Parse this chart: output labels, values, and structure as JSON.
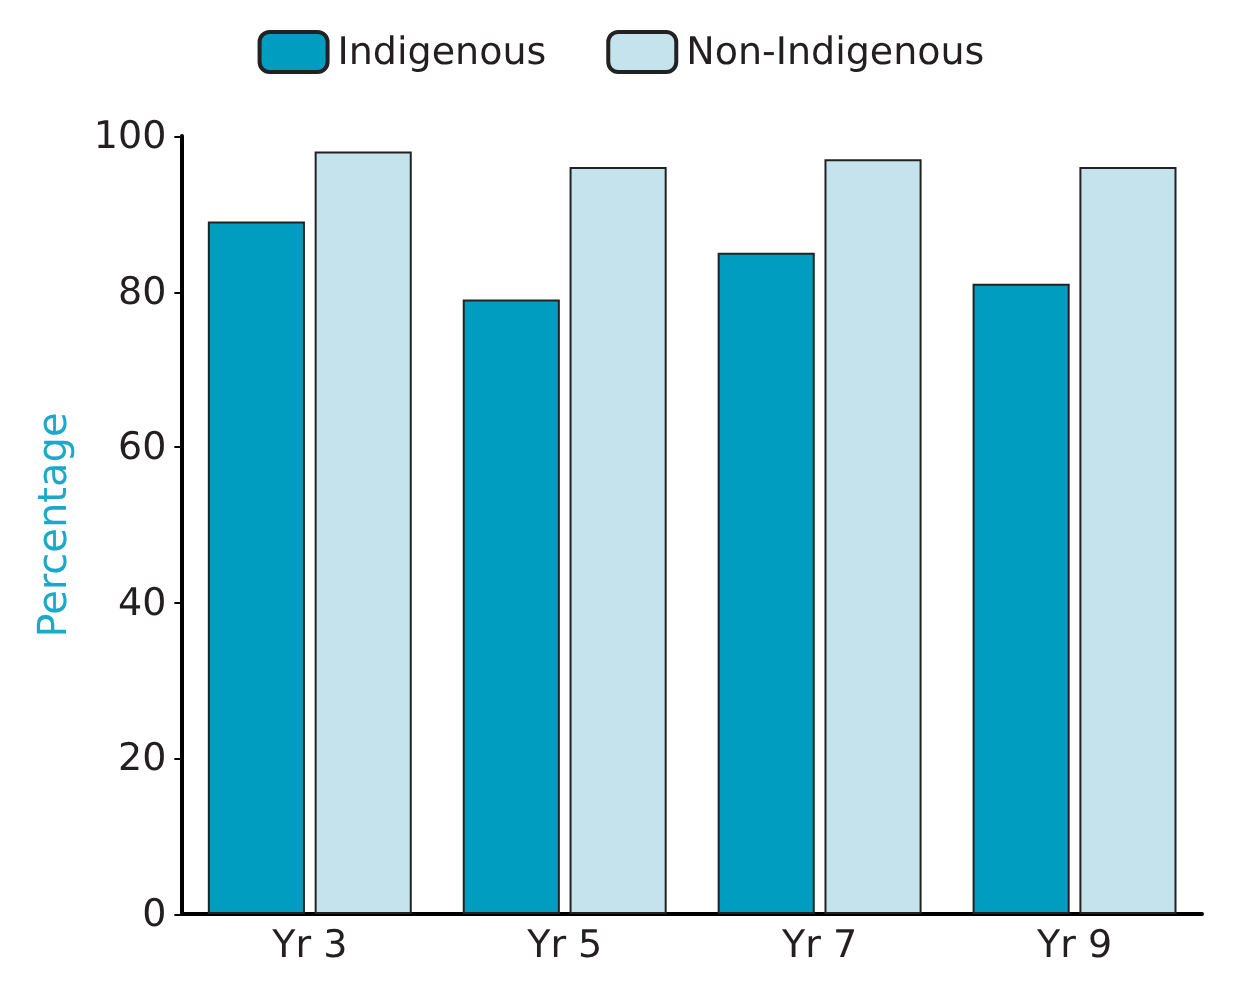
{
  "chart_data": {
    "type": "bar",
    "ylabel": "Percentage",
    "categories": [
      "Yr 3",
      "Yr 5",
      "Yr 7",
      "Yr 9"
    ],
    "series": [
      {
        "name": "Indigenous",
        "color": "#009dc1",
        "values": [
          89,
          79,
          85,
          81
        ]
      },
      {
        "name": "Non-Indigenous",
        "color": "#c4e3ed",
        "values": [
          98,
          96,
          97,
          96
        ]
      }
    ],
    "ylim": [
      0,
      100
    ],
    "yticks": [
      0,
      20,
      40,
      60,
      80,
      100
    ],
    "grid": false,
    "legend": "top"
  }
}
